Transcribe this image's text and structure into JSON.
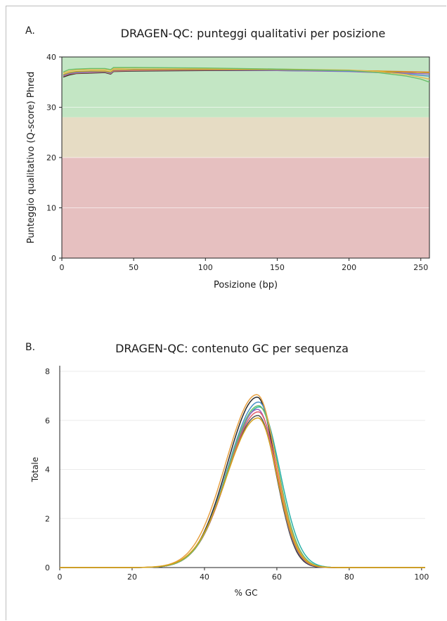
{
  "colors": {
    "zone_good": "#c3e6c4",
    "zone_warn": "#e6dcc4",
    "zone_bad": "#e6c0c0",
    "grid": "#ebebeb",
    "axis": "#222222"
  },
  "chart_data": [
    {
      "type": "line",
      "panel": "A.",
      "title": "DRAGEN-QC: punteggi qualitativi per posizione",
      "xlabel": "Posizione (bp)",
      "ylabel": "Punteggio qualitativo (Q-score) Phred",
      "xlim": [
        0,
        256
      ],
      "ylim": [
        0,
        40
      ],
      "x_ticks": [
        0,
        50,
        100,
        150,
        200,
        250
      ],
      "y_ticks": [
        0,
        10,
        20,
        30,
        40
      ],
      "background_zones": [
        {
          "from": 28,
          "to": 40,
          "color": "#c3e6c4"
        },
        {
          "from": 20,
          "to": 28,
          "color": "#e6dcc4"
        },
        {
          "from": 0,
          "to": 20,
          "color": "#e6c0c0"
        }
      ],
      "grid": true,
      "series": [
        {
          "color": "#2b2b2b",
          "points": [
            [
              1,
              36.0
            ],
            [
              5,
              36.4
            ],
            [
              10,
              36.7
            ],
            [
              20,
              36.8
            ],
            [
              30,
              36.9
            ],
            [
              34,
              36.6
            ],
            [
              36,
              37.1
            ],
            [
              50,
              37.2
            ],
            [
              100,
              37.3
            ],
            [
              150,
              37.3
            ],
            [
              200,
              37.2
            ],
            [
              220,
              37.1
            ],
            [
              240,
              37.0
            ],
            [
              256,
              36.9
            ]
          ]
        },
        {
          "color": "#e07a5f",
          "points": [
            [
              1,
              36.2
            ],
            [
              5,
              36.6
            ],
            [
              10,
              36.8
            ],
            [
              20,
              36.9
            ],
            [
              30,
              37.0
            ],
            [
              34,
              36.7
            ],
            [
              36,
              37.2
            ],
            [
              50,
              37.3
            ],
            [
              100,
              37.4
            ],
            [
              150,
              37.4
            ],
            [
              200,
              37.3
            ],
            [
              220,
              37.2
            ],
            [
              240,
              37.1
            ],
            [
              256,
              37.0
            ]
          ]
        },
        {
          "color": "#9b5fc0",
          "points": [
            [
              1,
              36.3
            ],
            [
              5,
              36.7
            ],
            [
              10,
              36.9
            ],
            [
              20,
              37.0
            ],
            [
              30,
              37.1
            ],
            [
              34,
              36.8
            ],
            [
              36,
              37.3
            ],
            [
              50,
              37.4
            ],
            [
              100,
              37.4
            ],
            [
              150,
              37.3
            ],
            [
              200,
              37.1
            ],
            [
              220,
              36.9
            ],
            [
              240,
              36.8
            ],
            [
              256,
              36.6
            ]
          ]
        },
        {
          "color": "#4a90c8",
          "points": [
            [
              1,
              36.4
            ],
            [
              5,
              36.8
            ],
            [
              10,
              37.0
            ],
            [
              20,
              37.1
            ],
            [
              30,
              37.1
            ],
            [
              34,
              36.9
            ],
            [
              36,
              37.4
            ],
            [
              50,
              37.5
            ],
            [
              100,
              37.5
            ],
            [
              150,
              37.4
            ],
            [
              200,
              37.2
            ],
            [
              220,
              37.0
            ],
            [
              240,
              36.6
            ],
            [
              256,
              36.2
            ]
          ]
        },
        {
          "color": "#d4a017",
          "points": [
            [
              1,
              36.5
            ],
            [
              5,
              36.9
            ],
            [
              10,
              37.1
            ],
            [
              20,
              37.2
            ],
            [
              30,
              37.2
            ],
            [
              34,
              37.0
            ],
            [
              36,
              37.4
            ],
            [
              50,
              37.5
            ],
            [
              100,
              37.5
            ],
            [
              150,
              37.5
            ],
            [
              200,
              37.3
            ],
            [
              220,
              37.2
            ],
            [
              240,
              37.0
            ],
            [
              256,
              36.9
            ]
          ]
        },
        {
          "color": "#e8b84a",
          "points": [
            [
              1,
              36.8
            ],
            [
              5,
              37.2
            ],
            [
              10,
              37.4
            ],
            [
              20,
              37.5
            ],
            [
              30,
              37.5
            ],
            [
              34,
              37.3
            ],
            [
              36,
              37.7
            ],
            [
              50,
              37.8
            ],
            [
              100,
              37.7
            ],
            [
              150,
              37.6
            ],
            [
              200,
              37.4
            ],
            [
              220,
              37.1
            ],
            [
              240,
              36.5
            ],
            [
              256,
              35.6
            ]
          ]
        },
        {
          "color": "#6abf69",
          "points": [
            [
              1,
              37.0
            ],
            [
              5,
              37.5
            ],
            [
              10,
              37.6
            ],
            [
              20,
              37.7
            ],
            [
              30,
              37.7
            ],
            [
              34,
              37.5
            ],
            [
              36,
              37.9
            ],
            [
              50,
              37.9
            ],
            [
              100,
              37.8
            ],
            [
              150,
              37.6
            ],
            [
              200,
              37.3
            ],
            [
              220,
              36.9
            ],
            [
              240,
              36.2
            ],
            [
              250,
              35.6
            ],
            [
              256,
              35.0
            ]
          ]
        }
      ]
    },
    {
      "type": "line",
      "panel": "B.",
      "title": "DRAGEN-QC: contenuto GC per sequenza",
      "xlabel": "% GC",
      "ylabel": "Totale",
      "xlim": [
        0,
        101
      ],
      "ylim": [
        0,
        8
      ],
      "x_ticks": [
        0,
        20,
        40,
        60,
        80,
        100
      ],
      "y_ticks": [
        0,
        2,
        4,
        6,
        8
      ],
      "grid": true,
      "gaussian_series": [
        {
          "color": "#2b2b2b",
          "peak_x": 54.6,
          "peak": 6.95,
          "sigma_left": 8.3,
          "sigma_right": 5.0
        },
        {
          "color": "#555555",
          "peak_x": 54.8,
          "peak": 6.2,
          "sigma_left": 8.6,
          "sigma_right": 5.1
        },
        {
          "color": "#4a90c8",
          "peak_x": 55.0,
          "peak": 6.75,
          "sigma_left": 8.5,
          "sigma_right": 5.3
        },
        {
          "color": "#2ab0a8",
          "peak_x": 55.2,
          "peak": 6.55,
          "sigma_left": 8.6,
          "sigma_right": 5.6
        },
        {
          "color": "#9b5fc0",
          "peak_x": 54.7,
          "peak": 6.45,
          "sigma_left": 8.4,
          "sigma_right": 5.2
        },
        {
          "color": "#e05a6a",
          "peak_x": 54.9,
          "peak": 6.35,
          "sigma_left": 8.5,
          "sigma_right": 5.2
        },
        {
          "color": "#6abf69",
          "peak_x": 55.0,
          "peak": 6.6,
          "sigma_left": 8.5,
          "sigma_right": 5.4
        },
        {
          "color": "#e8a040",
          "peak_x": 54.5,
          "peak": 7.05,
          "sigma_left": 8.6,
          "sigma_right": 5.4
        },
        {
          "color": "#d4a017",
          "peak_x": 54.8,
          "peak": 6.1,
          "sigma_left": 8.7,
          "sigma_right": 5.3
        }
      ]
    }
  ]
}
